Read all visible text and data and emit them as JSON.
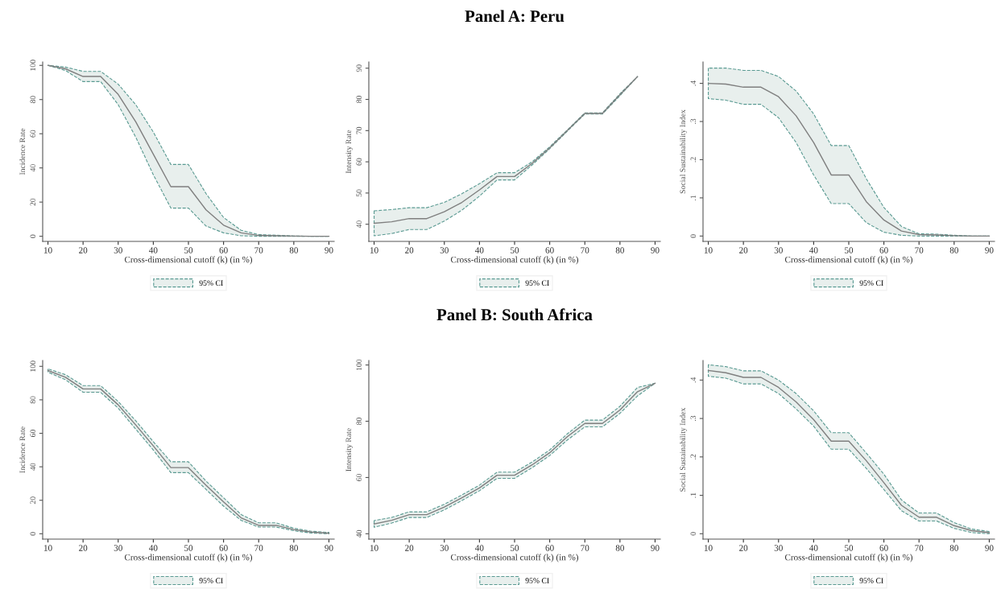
{
  "chart_data": [
    {
      "type": "line",
      "ylabel": "Incidence Rate",
      "xlabel": "Cross-dimensional cutoff (k) (in %)",
      "x": [
        10,
        15,
        20,
        25,
        30,
        35,
        40,
        45,
        50,
        55,
        60,
        65,
        70,
        75,
        80,
        85,
        90
      ],
      "xlim": [
        8.5,
        91.5
      ],
      "xticks": [
        10,
        20,
        30,
        40,
        50,
        60,
        70,
        80,
        90
      ],
      "ylim": [
        -3,
        102
      ],
      "yticks": [
        0,
        20,
        40,
        60,
        80,
        100
      ],
      "legend": "bottom",
      "grid": false,
      "line_style": "solid",
      "series": [
        {
          "name": "95% CI",
          "color": "#7f7f7f",
          "values": [
            100,
            98,
            93.5,
            93.5,
            83,
            67,
            48,
            29,
            29,
            15.5,
            6.5,
            2,
            0.5,
            0.3,
            0.1,
            0,
            0
          ],
          "lower": [
            100,
            97,
            90.5,
            90.5,
            77,
            58,
            36,
            16.5,
            16.5,
            6,
            2,
            0.3,
            0,
            0,
            0,
            0,
            0
          ],
          "upper": [
            100,
            99,
            96.5,
            96.5,
            89,
            77,
            61,
            42,
            42,
            25,
            11,
            3.5,
            1,
            0.6,
            0.2,
            0,
            0
          ]
        }
      ]
    },
    {
      "type": "line",
      "title": "Panel A: Peru",
      "ylabel": "Intensity Rate",
      "xlabel": "Cross-dimensional cutoff (k) (in %)",
      "x": [
        10,
        15,
        20,
        25,
        30,
        35,
        40,
        45,
        50,
        55,
        60,
        65,
        70,
        75,
        80,
        85
      ],
      "xlim": [
        8.5,
        91.5
      ],
      "xticks": [
        10,
        20,
        30,
        40,
        50,
        60,
        70,
        80,
        90
      ],
      "ylim": [
        34.5,
        92
      ],
      "yticks": [
        40,
        50,
        60,
        70,
        80,
        90
      ],
      "legend": "bottom",
      "grid": false,
      "line_style": "solid",
      "series": [
        {
          "name": "95% CI",
          "color": "#7f7f7f",
          "values": [
            40.3,
            40.8,
            41.8,
            41.8,
            44,
            47,
            51,
            55.3,
            55.3,
            59.5,
            64.5,
            70,
            75.5,
            75.5,
            81.5,
            87.3
          ],
          "lower": [
            36.3,
            37,
            38.3,
            38.3,
            41,
            44.5,
            49,
            54.2,
            54.2,
            59,
            64.2,
            69.8,
            75.3,
            75.3,
            81.2,
            87.3
          ],
          "upper": [
            44.3,
            44.7,
            45.3,
            45.3,
            47,
            49.8,
            53,
            56.5,
            56.5,
            60,
            64.8,
            70.2,
            75.7,
            75.7,
            81.8,
            87.3
          ]
        }
      ]
    },
    {
      "type": "line",
      "ylabel": "Social Sustainability Index",
      "xlabel": "Cross-dimensional cutoff (k) (in %)",
      "x": [
        10,
        15,
        20,
        25,
        30,
        35,
        40,
        45,
        50,
        55,
        60,
        65,
        70,
        75,
        80,
        85,
        90
      ],
      "xlim": [
        8.5,
        91.5
      ],
      "xticks": [
        10,
        20,
        30,
        40,
        50,
        60,
        70,
        80,
        90
      ],
      "ylim": [
        -0.014,
        0.456
      ],
      "yticks": [
        0,
        {
          "value": 0.1,
          "label": ".1"
        },
        {
          "value": 0.2,
          "label": ".2"
        },
        {
          "value": 0.3,
          "label": ".3"
        },
        {
          "value": 0.4,
          "label": ".4"
        }
      ],
      "legend": "bottom",
      "grid": false,
      "line_style": "solid",
      "series": [
        {
          "name": "95% CI",
          "color": "#7f7f7f",
          "values": [
            0.4,
            0.398,
            0.39,
            0.39,
            0.365,
            0.315,
            0.245,
            0.16,
            0.16,
            0.09,
            0.042,
            0.013,
            0.004,
            0.003,
            0.001,
            0,
            0
          ],
          "lower": [
            0.36,
            0.356,
            0.345,
            0.345,
            0.31,
            0.245,
            0.16,
            0.085,
            0.085,
            0.035,
            0.01,
            0.002,
            0,
            0,
            0,
            0,
            0
          ],
          "upper": [
            0.44,
            0.44,
            0.434,
            0.434,
            0.418,
            0.38,
            0.32,
            0.237,
            0.237,
            0.15,
            0.075,
            0.025,
            0.006,
            0.005,
            0.002,
            0,
            0
          ]
        }
      ]
    },
    {
      "type": "line",
      "ylabel": "Incidence Rate",
      "xlabel": "Cross-dimensional cutoff (k) (in %)",
      "x": [
        10,
        15,
        20,
        25,
        30,
        35,
        40,
        45,
        50,
        55,
        60,
        65,
        70,
        75,
        80,
        85,
        90
      ],
      "xlim": [
        8.5,
        91.5
      ],
      "xticks": [
        10,
        20,
        30,
        40,
        50,
        60,
        70,
        80,
        90
      ],
      "ylim": [
        -3.2,
        103.5
      ],
      "yticks": [
        0,
        20,
        40,
        60,
        80,
        100
      ],
      "legend": "bottom",
      "grid": false,
      "line_style": "solid",
      "series": [
        {
          "name": "95% CI",
          "color": "#7f7f7f",
          "values": [
            97.5,
            93.5,
            86.5,
            86.5,
            77,
            65,
            52.5,
            39.5,
            39.5,
            29,
            19,
            9.5,
            5,
            5,
            2.5,
            1,
            0.3
          ],
          "lower": [
            96.5,
            92,
            84.5,
            84.5,
            75,
            62.5,
            50,
            36.5,
            36.5,
            26.5,
            16.5,
            8,
            4,
            4,
            1.8,
            0.4,
            0
          ],
          "upper": [
            98.5,
            95,
            88.5,
            88.5,
            79,
            67.5,
            55,
            43,
            43,
            31.5,
            21.5,
            11.5,
            6.5,
            6.5,
            3.3,
            1.5,
            0.8
          ]
        }
      ]
    },
    {
      "type": "line",
      "title": "Panel B: South Africa",
      "ylabel": "Intensity Rate",
      "xlabel": "Cross-dimensional cutoff (k) (in %)",
      "x": [
        10,
        15,
        20,
        25,
        30,
        35,
        40,
        45,
        50,
        55,
        60,
        65,
        70,
        75,
        80,
        85,
        90
      ],
      "xlim": [
        8.5,
        91.5
      ],
      "xticks": [
        10,
        20,
        30,
        40,
        50,
        60,
        70,
        80,
        90
      ],
      "ylim": [
        38.1,
        101.6
      ],
      "yticks": [
        40,
        60,
        80,
        100
      ],
      "legend": "bottom",
      "grid": false,
      "line_style": "solid",
      "series": [
        {
          "name": "95% CI",
          "color": "#7f7f7f",
          "values": [
            43.5,
            44.8,
            46.8,
            46.8,
            49.5,
            52.8,
            56.3,
            60.8,
            60.8,
            64.5,
            68.8,
            74.5,
            79.2,
            79.2,
            84,
            90.5,
            93.5
          ],
          "lower": [
            42.3,
            43.8,
            45.8,
            45.8,
            48.5,
            51.8,
            55.3,
            59.7,
            59.7,
            63.5,
            67.8,
            73.3,
            78,
            78,
            82.8,
            89,
            93.5
          ],
          "upper": [
            44.7,
            45.8,
            47.8,
            47.8,
            50.5,
            53.8,
            57.3,
            61.9,
            61.9,
            65.5,
            69.8,
            75.5,
            80.4,
            80.4,
            85.3,
            92,
            93.5
          ]
        }
      ]
    },
    {
      "type": "line",
      "ylabel": "Social Sustainability Index",
      "xlabel": "Cross-dimensional cutoff (k) (in %)",
      "x": [
        10,
        15,
        20,
        25,
        30,
        35,
        40,
        45,
        50,
        55,
        60,
        65,
        70,
        75,
        80,
        85,
        90
      ],
      "xlim": [
        8.5,
        91.5
      ],
      "xticks": [
        10,
        20,
        30,
        40,
        50,
        60,
        70,
        80,
        90
      ],
      "ylim": [
        -0.014,
        0.451
      ],
      "yticks": [
        0,
        {
          "value": 0.1,
          "label": ".1"
        },
        {
          "value": 0.2,
          "label": ".2"
        },
        {
          "value": 0.3,
          "label": ".3"
        },
        {
          "value": 0.4,
          "label": ".4"
        }
      ],
      "legend": "bottom",
      "grid": false,
      "line_style": "solid",
      "series": [
        {
          "name": "95% CI",
          "color": "#7f7f7f",
          "values": [
            0.425,
            0.419,
            0.407,
            0.407,
            0.381,
            0.343,
            0.297,
            0.241,
            0.241,
            0.19,
            0.133,
            0.074,
            0.043,
            0.043,
            0.021,
            0.008,
            0.003
          ],
          "lower": [
            0.41,
            0.405,
            0.39,
            0.39,
            0.365,
            0.325,
            0.28,
            0.22,
            0.22,
            0.17,
            0.115,
            0.06,
            0.033,
            0.033,
            0.014,
            0.003,
            0
          ],
          "upper": [
            0.44,
            0.435,
            0.424,
            0.424,
            0.4,
            0.365,
            0.32,
            0.263,
            0.263,
            0.21,
            0.155,
            0.088,
            0.054,
            0.054,
            0.029,
            0.012,
            0.006
          ]
        }
      ]
    }
  ]
}
